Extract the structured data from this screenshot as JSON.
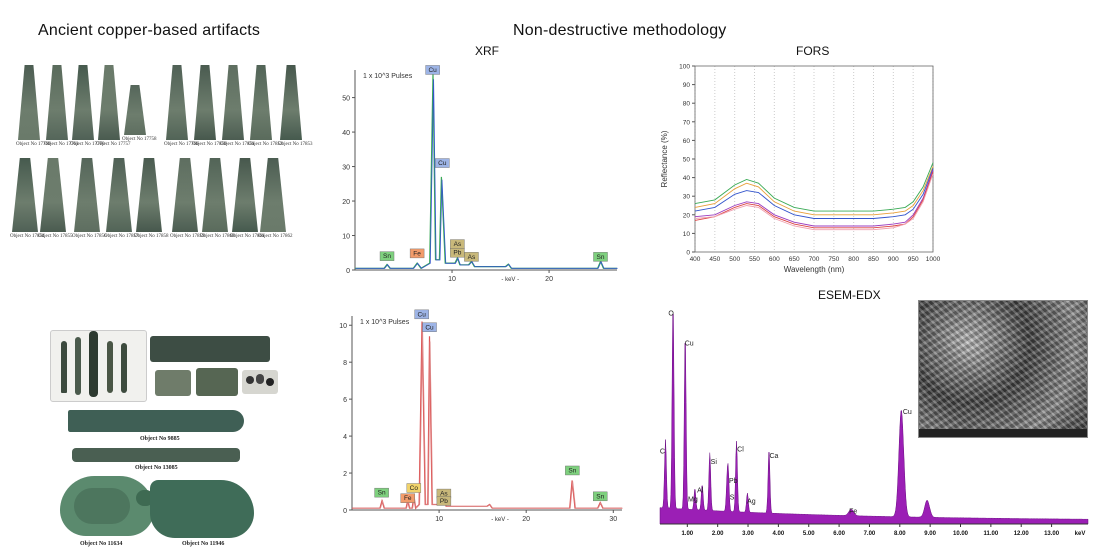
{
  "headings": {
    "artifacts": "Ancient copper-based artifacts",
    "methodology": "Non-destructive methodology"
  },
  "artifact_captions": {
    "top_row1": [
      "Object No 17760",
      "Object No 17761",
      "Object No 17770",
      "Object No 17757",
      "Object No 17758",
      "Object No 17766",
      "Object No 17850",
      "Object No 17851",
      "Object No 17852",
      "Object No 17853"
    ],
    "top_row2": [
      "Object No 17854",
      "Object No 17855",
      "Object No 17856",
      "Object No 17857",
      "Object No 17858",
      "Object No 17859",
      "Object No 17860",
      "Object No 17861",
      "Object No 17862"
    ],
    "lower": [
      "Object No 9885",
      "Object No 13085",
      "Object No 11634",
      "Object No 11946"
    ]
  },
  "colors": {
    "xrf_green": "#3aaa55",
    "xrf_blue": "#3355cc",
    "xrf_red": "#dd5555",
    "edx_purple": "#9b1fb5",
    "label_green": "#7ed07e",
    "label_orange": "#f29c6b",
    "label_olive": "#c8b87a",
    "label_blue": "#9db4e6"
  },
  "chart_data": [
    {
      "type": "line",
      "title": "XRF",
      "y_unit_label": "1 x 10^3 Pulses",
      "xlabel": "- keV -",
      "x_ticks": [
        10,
        20
      ],
      "y_ticks": [
        0,
        10,
        20,
        30,
        40,
        50
      ],
      "xlim": [
        0,
        27
      ],
      "ylim": [
        0,
        58
      ],
      "peak_labels": [
        "Cu",
        "Cu",
        "Sn",
        "Fe",
        "As",
        "Pb",
        "As",
        "Sn"
      ],
      "series": [
        {
          "x": [
            0,
            3,
            3.3,
            3.6,
            6,
            6.4,
            6.8,
            7.7,
            8.04,
            8.3,
            8.7,
            8.9,
            9.3,
            10.3,
            10.55,
            10.8,
            11.7,
            12.0,
            12.3,
            15.5,
            15.8,
            16.1,
            25,
            25.3,
            25.6,
            27
          ],
          "values": [
            0.5,
            0.5,
            1.6,
            0.5,
            0.5,
            2.0,
            0.5,
            2,
            57,
            3,
            3,
            27,
            2,
            2,
            3.5,
            1.5,
            1.5,
            2.5,
            1,
            1,
            1.7,
            0.5,
            0.5,
            2.5,
            0.5,
            0.5
          ]
        }
      ]
    },
    {
      "type": "line",
      "title": "",
      "y_unit_label": "1 x 10^3 Pulses",
      "xlabel": "- keV -",
      "x_ticks": [
        10,
        20,
        30
      ],
      "y_ticks": [
        0,
        2,
        4,
        6,
        8,
        10
      ],
      "xlim": [
        0,
        31
      ],
      "ylim": [
        0,
        10.5
      ],
      "peak_labels": [
        "Cu",
        "Cu",
        "Sn",
        "Fe",
        "Co",
        "As",
        "Pb",
        "Sn",
        "Sn"
      ],
      "series": [
        {
          "x": [
            0,
            3.2,
            3.44,
            3.7,
            6.2,
            6.4,
            6.6,
            6.9,
            7.1,
            7.3,
            7.7,
            8.04,
            8.4,
            8.7,
            8.9,
            9.2,
            10.3,
            10.55,
            10.8,
            15.5,
            15.8,
            16.1,
            25.0,
            25.27,
            25.6,
            28.2,
            28.5,
            28.8,
            31
          ],
          "values": [
            0.1,
            0.1,
            0.5,
            0.1,
            0.1,
            0.5,
            0.1,
            0.1,
            0.7,
            0.1,
            0.3,
            10.2,
            0.3,
            0.3,
            9.4,
            0.3,
            0.3,
            0.7,
            0.2,
            0.2,
            0.3,
            0.1,
            0.1,
            1.6,
            0.1,
            0.1,
            0.4,
            0.1,
            0.1
          ]
        }
      ]
    },
    {
      "type": "line",
      "title": "FORS",
      "xlabel": "Wavelength (nm)",
      "ylabel": "Reflectance (%)",
      "xlim": [
        400,
        1000
      ],
      "ylim": [
        0,
        100
      ],
      "x_ticks": [
        400,
        450,
        500,
        550,
        600,
        650,
        700,
        750,
        800,
        850,
        900,
        950,
        1000
      ],
      "y_ticks": [
        0,
        10,
        20,
        30,
        40,
        50,
        60,
        70,
        80,
        90,
        100
      ],
      "x": [
        400,
        450,
        500,
        530,
        560,
        600,
        650,
        700,
        750,
        800,
        850,
        900,
        930,
        950,
        975,
        1000
      ],
      "series": [
        {
          "color": "#3aaa55",
          "values": [
            26,
            28,
            36,
            39,
            37,
            29,
            24,
            22,
            22,
            22,
            22,
            23,
            24,
            27,
            35,
            48
          ]
        },
        {
          "color": "#e8a03a",
          "values": [
            24,
            26,
            34,
            37,
            35,
            27,
            22,
            20,
            20,
            20,
            20,
            21,
            22,
            25,
            33,
            46
          ]
        },
        {
          "color": "#3355cc",
          "values": [
            22,
            24,
            31,
            33,
            32,
            25,
            20,
            18,
            18,
            18,
            18,
            19,
            20,
            23,
            31,
            45
          ]
        },
        {
          "color": "#9b3dbf",
          "values": [
            19,
            20,
            25,
            27,
            26,
            20,
            16,
            14,
            14,
            14,
            14,
            15,
            16,
            20,
            29,
            44
          ]
        },
        {
          "color": "#dd4444",
          "values": [
            17,
            19,
            24,
            26,
            25,
            19,
            15,
            13,
            13,
            13,
            13,
            14,
            15,
            19,
            28,
            43
          ]
        },
        {
          "color": "#f0a0b0",
          "values": [
            18,
            19,
            23,
            25,
            24,
            18,
            14,
            12,
            12,
            12,
            12,
            13,
            15,
            18,
            27,
            42
          ]
        }
      ]
    },
    {
      "type": "area",
      "title": "ESEM-EDX",
      "xlabel": "keV",
      "xlim": [
        0.1,
        14.2
      ],
      "ylim": [
        0,
        100
      ],
      "x_ticks": [
        1,
        2,
        3,
        4,
        5,
        6,
        7,
        8,
        9,
        10,
        11,
        12,
        13
      ],
      "x_tick_labels": [
        "1.00",
        "2.00",
        "3.00",
        "4.00",
        "5.00",
        "6.00",
        "7.00",
        "8.00",
        "9.00",
        "10.00",
        "11.00",
        "12.00",
        "13.00"
      ],
      "peaks": [
        {
          "label": "C",
          "x": 0.28,
          "y": 32
        },
        {
          "label": "O",
          "x": 0.53,
          "y": 96
        },
        {
          "label": "Cu",
          "x": 0.93,
          "y": 82
        },
        {
          "label": "Mg",
          "x": 1.25,
          "y": 10
        },
        {
          "label": "Al",
          "x": 1.49,
          "y": 12
        },
        {
          "label": "Si",
          "x": 1.74,
          "y": 27
        },
        {
          "label": "Pb",
          "x": 2.35,
          "y": 16
        },
        {
          "label": "S",
          "x": 2.31,
          "y": 12
        },
        {
          "label": "Cl",
          "x": 2.62,
          "y": 33
        },
        {
          "label": "Ag",
          "x": 2.98,
          "y": 9
        },
        {
          "label": "Ca",
          "x": 3.69,
          "y": 30
        },
        {
          "label": "Fe",
          "x": 6.4,
          "y": 3
        },
        {
          "label": "Cu",
          "x": 8.05,
          "y": 50
        },
        {
          "label": "",
          "x": 8.9,
          "y": 8
        }
      ],
      "background": 5,
      "inset": "SEM micrograph"
    }
  ]
}
